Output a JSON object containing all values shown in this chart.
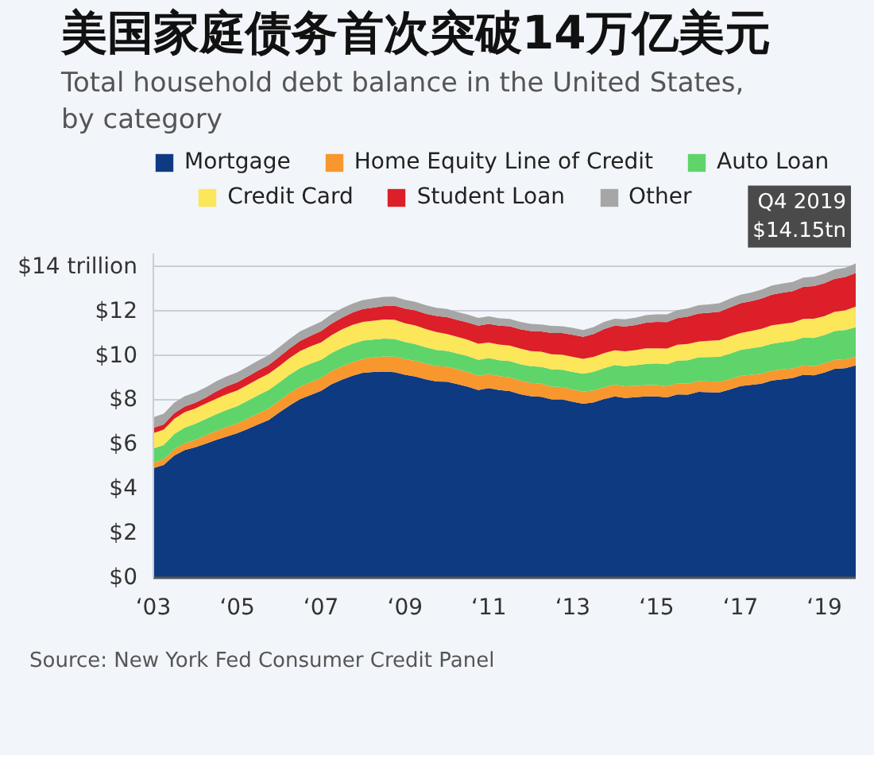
{
  "chart_data": {
    "type": "area",
    "stacked": true,
    "title": "美国家庭债务首次突破14万亿美元",
    "subtitle": "Total household debt balance in the United States, by category",
    "annotations": [
      {
        "text": "Q4 2019\n$14.15tn",
        "x": "2019-10",
        "y": 14.15
      },
      "Source: New York Fed Consumer Credit Panel"
    ],
    "x": [
      "2003-01",
      "2003-04",
      "2003-07",
      "2003-10",
      "2004-01",
      "2004-04",
      "2004-07",
      "2004-10",
      "2005-01",
      "2005-04",
      "2005-07",
      "2005-10",
      "2006-01",
      "2006-04",
      "2006-07",
      "2006-10",
      "2007-01",
      "2007-04",
      "2007-07",
      "2007-10",
      "2008-01",
      "2008-04",
      "2008-07",
      "2008-10",
      "2009-01",
      "2009-04",
      "2009-07",
      "2009-10",
      "2010-01",
      "2010-04",
      "2010-07",
      "2010-10",
      "2011-01",
      "2011-04",
      "2011-07",
      "2011-10",
      "2012-01",
      "2012-04",
      "2012-07",
      "2012-10",
      "2013-01",
      "2013-04",
      "2013-07",
      "2013-10",
      "2014-01",
      "2014-04",
      "2014-07",
      "2014-10",
      "2015-01",
      "2015-04",
      "2015-07",
      "2015-10",
      "2016-01",
      "2016-04",
      "2016-07",
      "2016-10",
      "2017-01",
      "2017-04",
      "2017-07",
      "2017-10",
      "2018-01",
      "2018-04",
      "2018-07",
      "2018-10",
      "2019-01",
      "2019-04",
      "2019-07",
      "2019-10"
    ],
    "series": [
      {
        "name": "Mortgage",
        "color": "#0e3a82",
        "values": [
          4.94,
          5.08,
          5.5,
          5.75,
          5.88,
          6.04,
          6.21,
          6.36,
          6.51,
          6.7,
          6.91,
          7.1,
          7.44,
          7.76,
          8.04,
          8.23,
          8.42,
          8.71,
          8.92,
          9.1,
          9.23,
          9.27,
          9.29,
          9.26,
          9.14,
          9.06,
          8.94,
          8.84,
          8.83,
          8.72,
          8.61,
          8.45,
          8.54,
          8.45,
          8.41,
          8.27,
          8.18,
          8.15,
          8.03,
          8.03,
          7.93,
          7.84,
          7.9,
          8.05,
          8.17,
          8.1,
          8.13,
          8.17,
          8.17,
          8.12,
          8.26,
          8.25,
          8.37,
          8.36,
          8.35,
          8.48,
          8.63,
          8.69,
          8.74,
          8.88,
          8.94,
          9.0,
          9.14,
          9.12,
          9.24,
          9.41,
          9.44,
          9.56
        ]
      },
      {
        "name": "Home Equity Line of Credit",
        "color": "#f7972e",
        "values": [
          0.24,
          0.26,
          0.29,
          0.31,
          0.33,
          0.37,
          0.4,
          0.43,
          0.44,
          0.47,
          0.49,
          0.52,
          0.53,
          0.56,
          0.57,
          0.58,
          0.58,
          0.59,
          0.6,
          0.61,
          0.63,
          0.65,
          0.68,
          0.7,
          0.71,
          0.71,
          0.7,
          0.69,
          0.68,
          0.67,
          0.66,
          0.65,
          0.64,
          0.63,
          0.62,
          0.61,
          0.6,
          0.59,
          0.58,
          0.56,
          0.55,
          0.54,
          0.54,
          0.53,
          0.53,
          0.52,
          0.51,
          0.51,
          0.51,
          0.5,
          0.5,
          0.49,
          0.49,
          0.48,
          0.48,
          0.47,
          0.46,
          0.45,
          0.45,
          0.44,
          0.44,
          0.43,
          0.42,
          0.41,
          0.41,
          0.4,
          0.4,
          0.39
        ]
      },
      {
        "name": "Auto Loan",
        "color": "#5fd46a",
        "values": [
          0.64,
          0.64,
          0.68,
          0.7,
          0.72,
          0.74,
          0.75,
          0.77,
          0.78,
          0.8,
          0.82,
          0.83,
          0.82,
          0.82,
          0.83,
          0.83,
          0.81,
          0.82,
          0.83,
          0.83,
          0.82,
          0.81,
          0.8,
          0.79,
          0.77,
          0.75,
          0.74,
          0.73,
          0.71,
          0.71,
          0.71,
          0.71,
          0.71,
          0.72,
          0.73,
          0.74,
          0.75,
          0.76,
          0.77,
          0.78,
          0.79,
          0.81,
          0.84,
          0.86,
          0.88,
          0.91,
          0.93,
          0.95,
          0.97,
          1.0,
          1.02,
          1.06,
          1.07,
          1.1,
          1.12,
          1.14,
          1.17,
          1.19,
          1.21,
          1.22,
          1.23,
          1.24,
          1.26,
          1.27,
          1.28,
          1.3,
          1.32,
          1.33
        ]
      },
      {
        "name": "Credit Card",
        "color": "#fce65a",
        "values": [
          0.69,
          0.69,
          0.69,
          0.7,
          0.69,
          0.7,
          0.7,
          0.71,
          0.71,
          0.72,
          0.73,
          0.74,
          0.74,
          0.75,
          0.77,
          0.78,
          0.79,
          0.8,
          0.83,
          0.85,
          0.84,
          0.85,
          0.86,
          0.87,
          0.84,
          0.84,
          0.82,
          0.81,
          0.76,
          0.75,
          0.74,
          0.73,
          0.7,
          0.7,
          0.7,
          0.7,
          0.68,
          0.68,
          0.68,
          0.68,
          0.68,
          0.67,
          0.67,
          0.68,
          0.66,
          0.67,
          0.68,
          0.7,
          0.68,
          0.7,
          0.71,
          0.73,
          0.71,
          0.73,
          0.75,
          0.78,
          0.76,
          0.78,
          0.81,
          0.83,
          0.82,
          0.83,
          0.84,
          0.87,
          0.85,
          0.87,
          0.88,
          0.93
        ]
      },
      {
        "name": "Student Loan",
        "color": "#dc1f28",
        "values": [
          0.24,
          0.24,
          0.25,
          0.25,
          0.26,
          0.26,
          0.33,
          0.35,
          0.36,
          0.37,
          0.38,
          0.39,
          0.42,
          0.43,
          0.45,
          0.48,
          0.51,
          0.52,
          0.53,
          0.55,
          0.58,
          0.59,
          0.61,
          0.64,
          0.66,
          0.68,
          0.69,
          0.72,
          0.76,
          0.76,
          0.78,
          0.81,
          0.84,
          0.85,
          0.87,
          0.87,
          0.9,
          0.91,
          0.96,
          0.97,
          0.99,
          0.99,
          1.03,
          1.08,
          1.11,
          1.12,
          1.13,
          1.16,
          1.19,
          1.19,
          1.2,
          1.23,
          1.26,
          1.26,
          1.28,
          1.31,
          1.34,
          1.34,
          1.36,
          1.38,
          1.41,
          1.41,
          1.44,
          1.46,
          1.49,
          1.48,
          1.5,
          1.51
        ]
      },
      {
        "name": "Other",
        "color": "#a6a6a6",
        "values": [
          0.48,
          0.48,
          0.47,
          0.47,
          0.47,
          0.46,
          0.46,
          0.45,
          0.45,
          0.45,
          0.45,
          0.44,
          0.44,
          0.43,
          0.43,
          0.42,
          0.42,
          0.42,
          0.42,
          0.41,
          0.41,
          0.41,
          0.41,
          0.4,
          0.4,
          0.39,
          0.38,
          0.37,
          0.36,
          0.36,
          0.35,
          0.35,
          0.34,
          0.33,
          0.33,
          0.33,
          0.32,
          0.32,
          0.32,
          0.31,
          0.31,
          0.31,
          0.31,
          0.32,
          0.32,
          0.32,
          0.33,
          0.34,
          0.34,
          0.35,
          0.36,
          0.37,
          0.37,
          0.38,
          0.38,
          0.39,
          0.39,
          0.39,
          0.4,
          0.41,
          0.41,
          0.41,
          0.42,
          0.42,
          0.42,
          0.42,
          0.42,
          0.43
        ]
      }
    ],
    "xlim": [
      "2003-01",
      "2019-10"
    ],
    "xticks": [
      {
        "value": "2003",
        "label": "‘03"
      },
      {
        "value": "2005",
        "label": "‘05"
      },
      {
        "value": "2007",
        "label": "‘07"
      },
      {
        "value": "2009",
        "label": "‘09"
      },
      {
        "value": "2011",
        "label": "‘11"
      },
      {
        "value": "2013",
        "label": "‘13"
      },
      {
        "value": "2015",
        "label": "‘15"
      },
      {
        "value": "2017",
        "label": "‘17"
      },
      {
        "value": "2019",
        "label": "‘19"
      }
    ],
    "ylim": [
      0,
      14.6
    ],
    "yticks": [
      {
        "value": 0,
        "label": "$0"
      },
      {
        "value": 2,
        "label": "$2"
      },
      {
        "value": 4,
        "label": "$4"
      },
      {
        "value": 6,
        "label": "$6"
      },
      {
        "value": 8,
        "label": "$8"
      },
      {
        "value": 10,
        "label": "$10"
      },
      {
        "value": 12,
        "label": "$12"
      },
      {
        "value": 14,
        "label": "$14 trillion"
      }
    ],
    "grid": "y",
    "legend": "top"
  }
}
